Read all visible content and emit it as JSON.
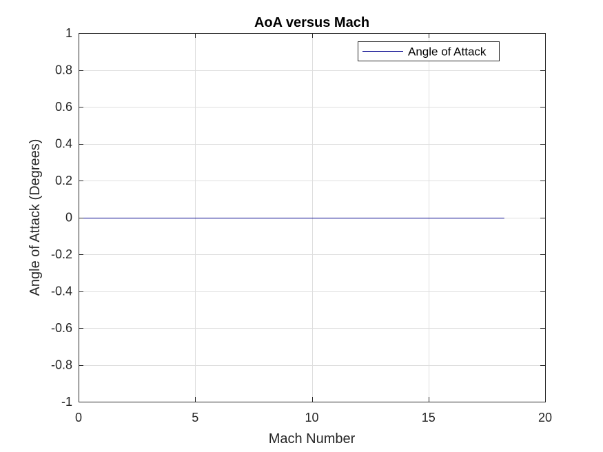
{
  "chart_data": {
    "type": "line",
    "title": "AoA versus Mach",
    "xlabel": "Mach Number",
    "ylabel": "Angle of Attack (Degrees)",
    "xlim": [
      0,
      20
    ],
    "ylim": [
      -1,
      1
    ],
    "xticks": [
      0,
      5,
      10,
      15,
      20
    ],
    "xtick_labels": [
      "0",
      "5",
      "10",
      "15",
      "20"
    ],
    "yticks": [
      1,
      0.8,
      0.6,
      0.4,
      0.2,
      0,
      -0.2,
      -0.4,
      -0.6,
      -0.8,
      -1
    ],
    "ytick_labels": [
      "1",
      "0.8",
      "0.6",
      "0.4",
      "0.2",
      "0",
      "-0.2",
      "-0.4",
      "-0.6",
      "-0.8",
      "-1"
    ],
    "grid": true,
    "legend_position": "top-right",
    "series": [
      {
        "name": "Angle of Attack",
        "color": "#00008b",
        "x": [
          0,
          18.25
        ],
        "y": [
          0,
          0
        ]
      }
    ]
  }
}
